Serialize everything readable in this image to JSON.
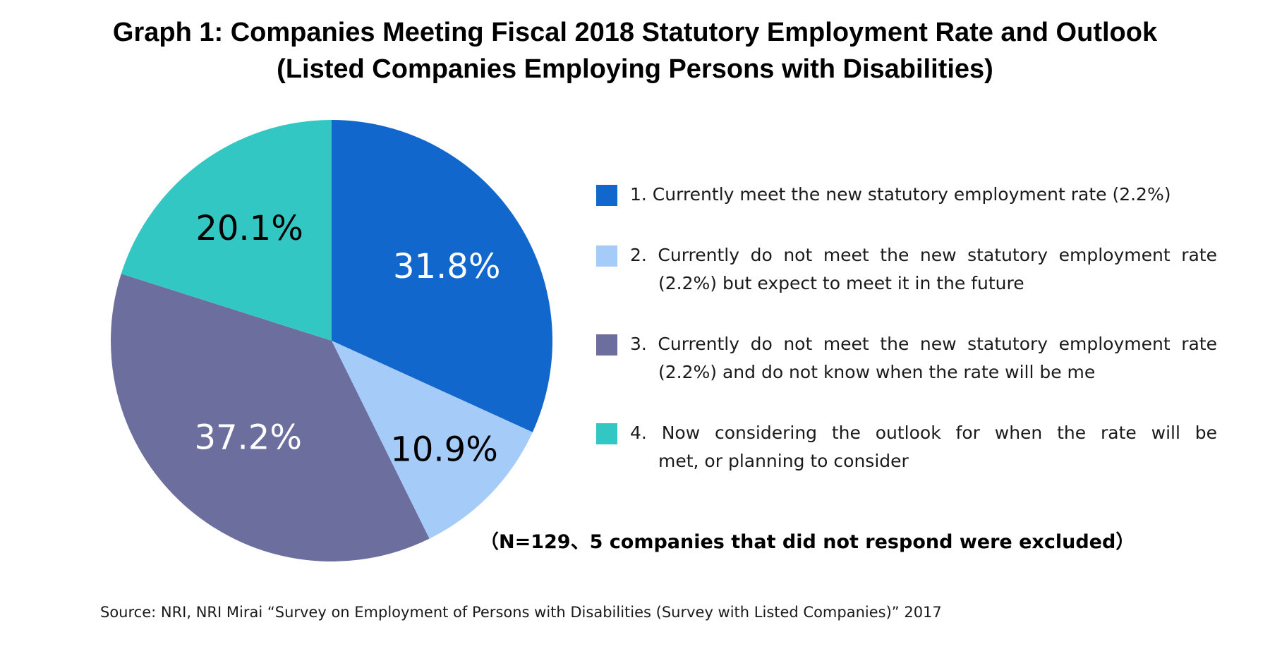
{
  "title": {
    "line1": "Graph 1: Companies Meeting Fiscal 2018 Statutory Employment Rate and Outlook",
    "line2": "(Listed Companies Employing Persons with Disabilities)"
  },
  "chart_data": {
    "type": "pie",
    "direction": "clockwise",
    "start_angle_deg": 0,
    "legend_position": "right",
    "slices": [
      {
        "value": 31.8,
        "display": "31.8%",
        "color": "#1267CD",
        "label_color": "#FFFFFF",
        "legend_lines": [
          "1. Currently meet the new statutory employment rate (2.2%)"
        ]
      },
      {
        "value": 10.9,
        "display": "10.9%",
        "color": "#A5CBF8",
        "label_color": "#000000",
        "legend_lines": [
          "2. Currently do not meet the new statutory employment rate",
          "(2.2%) but expect to meet it in the future"
        ]
      },
      {
        "value": 37.2,
        "display": "37.2%",
        "color": "#6C6E9E",
        "label_color": "#FFFFFF",
        "legend_lines": [
          "3. Currently do not meet the new statutory employment rate",
          "(2.2%) and do not know when the rate will be me"
        ]
      },
      {
        "value": 20.1,
        "display": "20.1%",
        "color": "#33C7C4",
        "label_color": "#000000",
        "legend_lines": [
          "4. Now considering the outlook for when the rate will be",
          "met, or planning to consider"
        ]
      }
    ],
    "note": "（N=129、5 companies that did not respond were excluded）",
    "source": "Source: NRI, NRI Mirai “Survey on Employment of Persons with Disabilities (Survey with Listed Companies)” 2017"
  }
}
